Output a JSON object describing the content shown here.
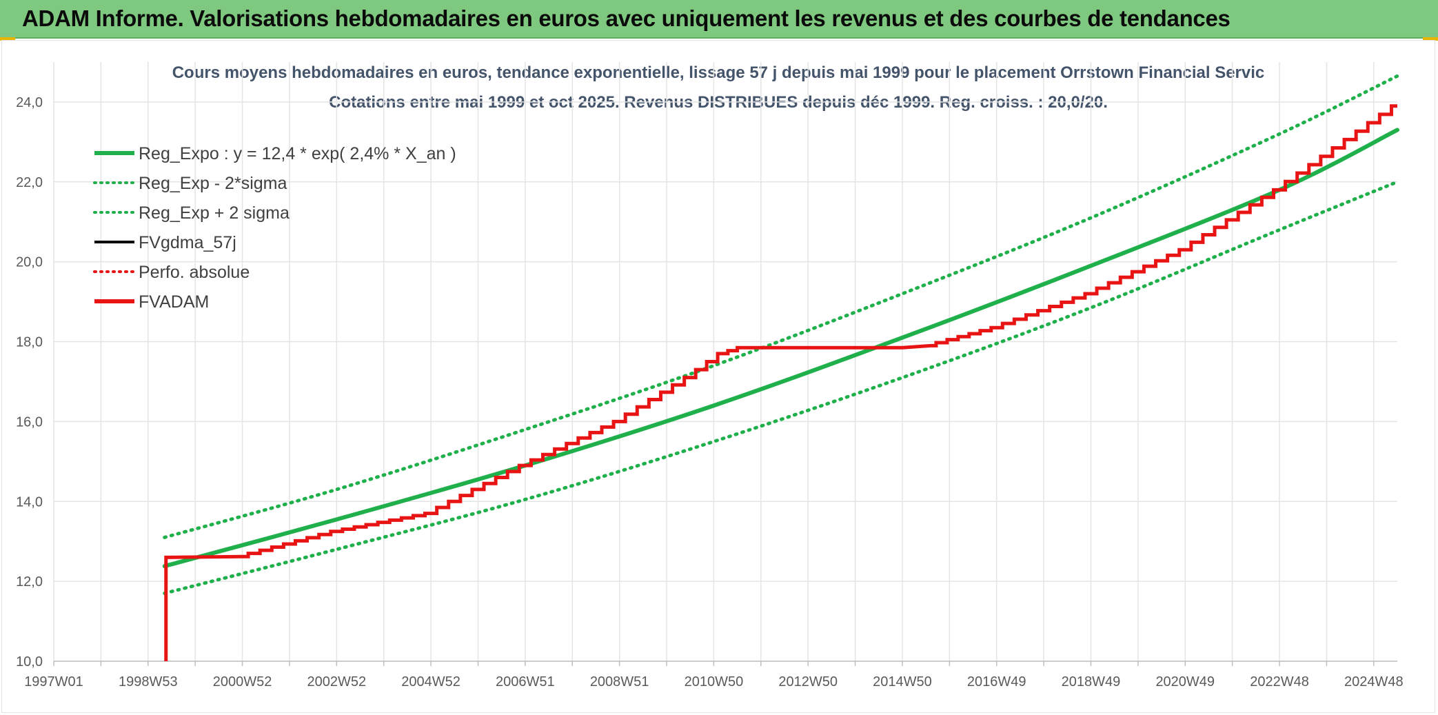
{
  "header": {
    "title": "ADAM Informe. Valorisations hebdomadaires en euros avec uniquement les revenus et des courbes de tendances"
  },
  "colors": {
    "header_bg": "#7ec97f",
    "green": "#1fb04b",
    "red": "#e81414",
    "black": "#000000",
    "grid": "#e4e4e4"
  },
  "chart_data": {
    "type": "line",
    "title": "Cours moyens hebdomadaires en euros, tendance exponentielle, lissage 57 j depuis mai 1999 pour le placement Orrstown Financial Servic",
    "subtitle": "Cotations entre mai 1999 et oct 2025. Revenus DISTRIBUES depuis déc 1999. Reg. croiss. : 20,0/20.",
    "xlabel": "",
    "ylabel": "",
    "xlim": [
      1997.0,
      2025.5
    ],
    "ylim": [
      10,
      25
    ],
    "x_ticks": [
      {
        "label": "1997W01",
        "x": 1997.0
      },
      {
        "label": "1998W53",
        "x": 1999.0
      },
      {
        "label": "2000W52",
        "x": 2001.0
      },
      {
        "label": "2002W52",
        "x": 2003.0
      },
      {
        "label": "2004W52",
        "x": 2005.0
      },
      {
        "label": "2006W51",
        "x": 2007.0
      },
      {
        "label": "2008W51",
        "x": 2009.0
      },
      {
        "label": "2010W50",
        "x": 2011.0
      },
      {
        "label": "2012W50",
        "x": 2013.0
      },
      {
        "label": "2014W50",
        "x": 2015.0
      },
      {
        "label": "2016W49",
        "x": 2017.0
      },
      {
        "label": "2018W49",
        "x": 2019.0
      },
      {
        "label": "2020W49",
        "x": 2021.0
      },
      {
        "label": "2022W48",
        "x": 2023.0
      },
      {
        "label": "2024W48",
        "x": 2025.0
      }
    ],
    "y_ticks": [
      {
        "label": "10,0",
        "y": 10
      },
      {
        "label": "12,0",
        "y": 12
      },
      {
        "label": "14,0",
        "y": 14
      },
      {
        "label": "16,0",
        "y": 16
      },
      {
        "label": "18,0",
        "y": 18
      },
      {
        "label": "20,0",
        "y": 20
      },
      {
        "label": "22,0",
        "y": 22
      },
      {
        "label": "24,0",
        "y": 24
      }
    ],
    "grid": true,
    "legend_position": "top-left",
    "series": [
      {
        "name": "Reg_Expo : y = 12,4 * exp( 2,4% *  X_an )",
        "style": "solid-thick",
        "color": "#1fb04b",
        "x": [
          1999.35,
          2003.0,
          2007.0,
          2011.0,
          2015.0,
          2019.0,
          2023.0,
          2025.5
        ],
        "y": [
          12.38,
          13.55,
          14.9,
          16.4,
          18.1,
          19.9,
          21.8,
          23.3
        ]
      },
      {
        "name": "Reg_Exp - 2*sigma",
        "style": "dotted",
        "color": "#1fb04b",
        "x": [
          1999.35,
          2003.0,
          2007.0,
          2011.0,
          2015.0,
          2019.0,
          2023.0,
          2025.5
        ],
        "y": [
          11.7,
          12.8,
          14.05,
          15.5,
          17.1,
          18.85,
          20.8,
          22.0
        ]
      },
      {
        "name": "Reg_Exp + 2 sigma",
        "style": "dotted",
        "color": "#1fb04b",
        "x": [
          1999.35,
          2003.0,
          2007.0,
          2011.0,
          2015.0,
          2019.0,
          2023.0,
          2025.5
        ],
        "y": [
          13.1,
          14.3,
          15.8,
          17.4,
          19.2,
          21.1,
          23.2,
          24.65
        ]
      },
      {
        "name": "FVgdma_57j",
        "style": "solid",
        "color": "#000000",
        "x": [],
        "y": []
      },
      {
        "name": "Perfo. absolue",
        "style": "dotted",
        "color": "#e81414",
        "x": [],
        "y": []
      },
      {
        "name": "FVADAM",
        "style": "solid-thick",
        "color": "#e81414",
        "x": [
          1999.38,
          1999.38,
          1999.38,
          2001.0,
          2003.0,
          2005.0,
          2007.0,
          2009.0,
          2010.5,
          2011.2,
          2011.6,
          2015.0,
          2015.6,
          2017.0,
          2019.0,
          2021.0,
          2023.0,
          2025.5
        ],
        "y": [
          10.0,
          12.55,
          12.6,
          12.62,
          13.25,
          13.7,
          14.9,
          16.0,
          17.1,
          17.7,
          17.85,
          17.85,
          17.9,
          18.35,
          19.2,
          20.3,
          21.8,
          23.9
        ]
      }
    ]
  }
}
